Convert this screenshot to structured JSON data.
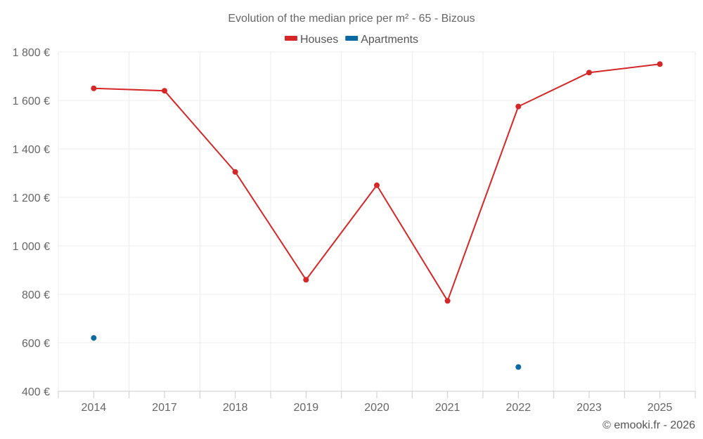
{
  "chart_data": {
    "type": "line",
    "title": "Evolution of the median price per m² - 65 - Bizous",
    "xlabel": "",
    "ylabel": "",
    "categories": [
      "2014",
      "2017",
      "2018",
      "2019",
      "2020",
      "2021",
      "2022",
      "2023",
      "2025"
    ],
    "ylim": [
      400,
      1800
    ],
    "yticks": [
      400,
      600,
      800,
      1000,
      1200,
      1400,
      1600,
      1800
    ],
    "ytick_labels": [
      "400 €",
      "600 €",
      "800 €",
      "1 000 €",
      "1 200 €",
      "1 400 €",
      "1 600 €",
      "1 800 €"
    ],
    "grid": true,
    "legend_position": "top-center",
    "series": [
      {
        "name": "Houses",
        "color": "#d62728",
        "values": [
          1650,
          1640,
          1305,
          860,
          1250,
          773,
          1575,
          1715,
          1750
        ]
      },
      {
        "name": "Apartments",
        "color": "#0a6aa1",
        "values": [
          620,
          null,
          null,
          null,
          null,
          null,
          500,
          null,
          null
        ]
      }
    ],
    "credit": "© emooki.fr - 2026"
  }
}
